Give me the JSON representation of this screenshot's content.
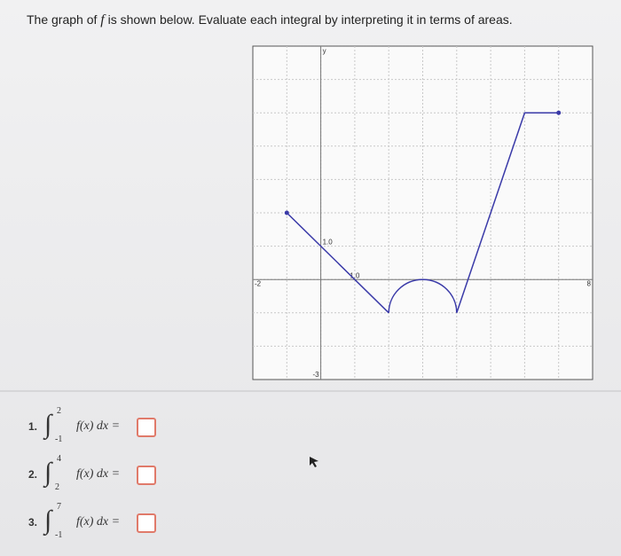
{
  "header": {
    "text_before": "The graph of ",
    "function_name": "f",
    "text_after": " is shown below. Evaluate each integral by interpreting it in terms of areas."
  },
  "graph": {
    "xlim": [
      -2,
      8
    ],
    "ylim": [
      -3,
      7
    ],
    "labels": {
      "x_min": "-2",
      "x_max": "8",
      "y_axis": "y",
      "y_min": "-3",
      "y_unit": "1.0",
      "x_unit": "1.0"
    },
    "line1": {
      "x": [
        -1,
        2
      ],
      "y": [
        2,
        -1
      ]
    },
    "arc": {
      "center": [
        3,
        -1
      ],
      "radius": 1
    },
    "line2": {
      "x": [
        4,
        6,
        7
      ],
      "y": [
        -1,
        5,
        5
      ]
    }
  },
  "questions": [
    {
      "number": "1.",
      "lower": "-1",
      "upper": "2",
      "integrand": "f(x) dx ="
    },
    {
      "number": "2.",
      "lower": "2",
      "upper": "4",
      "integrand": "f(x) dx ="
    },
    {
      "number": "3.",
      "lower": "-1",
      "upper": "7",
      "integrand": "f(x) dx ="
    }
  ]
}
